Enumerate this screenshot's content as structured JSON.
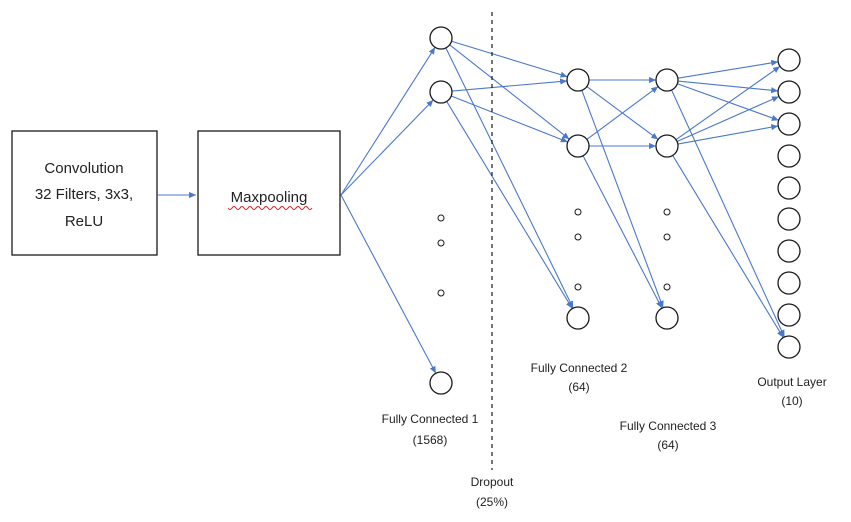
{
  "colors": {
    "edge": "#4a78cc",
    "stroke": "#1a1a1a",
    "text": "#222222",
    "spellcheck": "#d02020"
  },
  "boxes": {
    "convolution": {
      "lines": [
        "Convolution",
        "32 Filters, 3x3,",
        "ReLU"
      ]
    },
    "maxpooling": {
      "label": "Maxpooling"
    }
  },
  "layers": {
    "fc1": {
      "line1": "Fully Connected 1",
      "line2": "(1568)"
    },
    "fc2": {
      "line1": "Fully Connected 2",
      "line2": "(64)"
    },
    "fc3": {
      "line1": "Fully Connected 3",
      "line2": "(64)"
    },
    "output": {
      "line1": "Output Layer",
      "line2": "(10)"
    }
  },
  "dropout": {
    "line1": "Dropout",
    "line2": "(25%)"
  }
}
